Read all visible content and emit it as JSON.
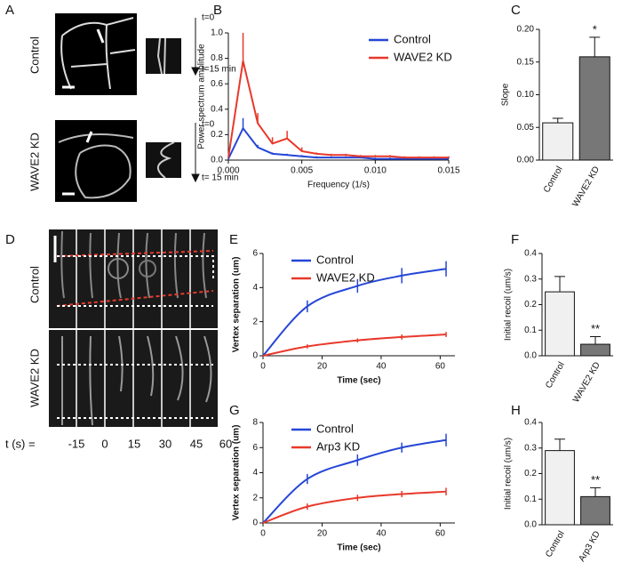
{
  "image_panels": [
    {
      "label": "A",
      "rows": [
        "Control",
        "WAVE2 KD"
      ],
      "kymograph_times": [
        [
          "t=0",
          "t=15 min"
        ],
        [
          "t=0",
          "t= 15 min"
        ]
      ]
    },
    {
      "label": "D",
      "rows": [
        "Control",
        "WAVE2 KD"
      ],
      "time_prefix": "t (s) =",
      "times": [
        "-15",
        "0",
        "15",
        "30",
        "45",
        "60"
      ]
    }
  ],
  "chart_data": [
    {
      "type": "line",
      "panel": "B",
      "ylabel": "Power spectrum amplitude",
      "xlabel": "Frequency (1/s)",
      "x": [
        0,
        0.001,
        0.002,
        0.003,
        0.004,
        0.005,
        0.006,
        0.007,
        0.008,
        0.009,
        0.01,
        0.011,
        0.012,
        0.013,
        0.014,
        0.015
      ],
      "xlim": [
        0,
        0.015
      ],
      "ylim": [
        0,
        1
      ],
      "xticks": [
        {
          "value": 0,
          "label": "0.000"
        },
        {
          "value": 0.005,
          "label": "0.005"
        },
        {
          "value": 0.01,
          "label": "0.010"
        },
        {
          "value": 0.015,
          "label": "0.015"
        }
      ],
      "yticks": [
        {
          "value": 0,
          "label": "0.0"
        },
        0.2,
        0.4,
        0.6,
        0.8,
        {
          "value": 1,
          "label": "1.0"
        }
      ],
      "error_bars": "upper",
      "legend": "upper right",
      "smooth": false,
      "series": [
        {
          "name": "Control",
          "color": "#2546d6",
          "values": [
            0.01,
            0.25,
            0.1,
            0.05,
            0.04,
            0.03,
            0.02,
            0.02,
            0.02,
            0.02,
            0.01,
            0.01,
            0.01,
            0.01,
            0.01,
            0.01
          ],
          "errors": [
            0,
            0.08,
            0.02,
            0.01,
            0.01,
            0.01,
            0.01,
            0.01,
            0.01,
            0.01,
            0.01,
            0.01,
            0.01,
            0.01,
            0.01,
            0.01
          ]
        },
        {
          "name": "WAVE2 KD",
          "color": "#e8392b",
          "values": [
            0.02,
            0.78,
            0.29,
            0.13,
            0.17,
            0.07,
            0.05,
            0.04,
            0.04,
            0.03,
            0.03,
            0.03,
            0.02,
            0.02,
            0.02,
            0.02
          ],
          "errors": [
            0,
            0.22,
            0.08,
            0.05,
            0.06,
            0.03,
            0.01,
            0.01,
            0.01,
            0.01,
            0.01,
            0.01,
            0.01,
            0.01,
            0.01,
            0.01
          ]
        }
      ]
    },
    {
      "type": "bar",
      "panel": "C",
      "ylabel": "Slope",
      "categories": [
        "Control",
        "WAVE2 KD"
      ],
      "values": [
        0.057,
        0.158
      ],
      "errors": [
        0.007,
        0.03
      ],
      "colors": [
        "#f0f0f0",
        "#777777"
      ],
      "annotation": "*",
      "ylim": [
        0,
        0.2
      ],
      "yticks": [
        {
          "value": 0,
          "label": "0.00"
        },
        0.05,
        {
          "value": 0.1,
          "label": "0.10"
        },
        0.15,
        {
          "value": 0.2,
          "label": "0.20"
        }
      ]
    },
    {
      "type": "line",
      "panel": "E",
      "ylabel": "Vertex separation (um)",
      "xlabel": "Time (sec)",
      "x": [
        0,
        15,
        32,
        47,
        62
      ],
      "xlim": [
        0,
        65
      ],
      "ylim": [
        0,
        6
      ],
      "xticks": [
        0,
        20,
        40,
        60
      ],
      "yticks": [
        0,
        2,
        4,
        6
      ],
      "error_bars": "both",
      "legend": "upper left",
      "smooth": true,
      "series": [
        {
          "name": "Control",
          "color": "#2546d6",
          "values": [
            0,
            2.9,
            4.1,
            4.7,
            5.1
          ],
          "errors": [
            0,
            0.35,
            0.4,
            0.45,
            0.45
          ]
        },
        {
          "name": "WAVE2 KD",
          "color": "#e8392b",
          "values": [
            0,
            0.55,
            0.9,
            1.1,
            1.25
          ],
          "errors": [
            0,
            0.12,
            0.12,
            0.15,
            0.15
          ]
        }
      ]
    },
    {
      "type": "bar",
      "panel": "F",
      "ylabel": "Initial recoil (um/s)",
      "categories": [
        "Control",
        "WAVE2 KD"
      ],
      "values": [
        0.25,
        0.045
      ],
      "errors": [
        0.06,
        0.03
      ],
      "colors": [
        "#f0f0f0",
        "#777777"
      ],
      "annotation": "**",
      "ylim": [
        0,
        0.4
      ],
      "yticks": [
        {
          "value": 0,
          "label": "0.0"
        },
        0.1,
        0.2,
        0.3,
        0.4
      ]
    },
    {
      "type": "line",
      "panel": "G",
      "ylabel": "Vertex separation (um)",
      "xlabel": "Time (sec)",
      "x": [
        0,
        15,
        32,
        47,
        62
      ],
      "xlim": [
        0,
        65
      ],
      "ylim": [
        0,
        8
      ],
      "xticks": [
        0,
        20,
        40,
        60
      ],
      "yticks": [
        0,
        2,
        4,
        6,
        8
      ],
      "error_bars": "both",
      "legend": "upper left",
      "smooth": true,
      "series": [
        {
          "name": "Control",
          "color": "#2546d6",
          "values": [
            0,
            3.5,
            5.0,
            6.0,
            6.6
          ],
          "errors": [
            0,
            0.4,
            0.45,
            0.4,
            0.5
          ]
        },
        {
          "name": "Arp3 KD",
          "color": "#e8392b",
          "values": [
            0,
            1.3,
            2.0,
            2.3,
            2.5
          ],
          "errors": [
            0,
            0.25,
            0.25,
            0.25,
            0.3
          ]
        }
      ]
    },
    {
      "type": "bar",
      "panel": "H",
      "ylabel": "Initial recoil (um/s)",
      "categories": [
        "Control",
        "Arp3 KD"
      ],
      "values": [
        0.29,
        0.11
      ],
      "errors": [
        0.045,
        0.035
      ],
      "colors": [
        "#f0f0f0",
        "#777777"
      ],
      "annotation": "**",
      "ylim": [
        0,
        0.4
      ],
      "yticks": [
        {
          "value": 0,
          "label": "0.0"
        },
        0.1,
        0.2,
        0.3,
        0.4
      ]
    }
  ]
}
